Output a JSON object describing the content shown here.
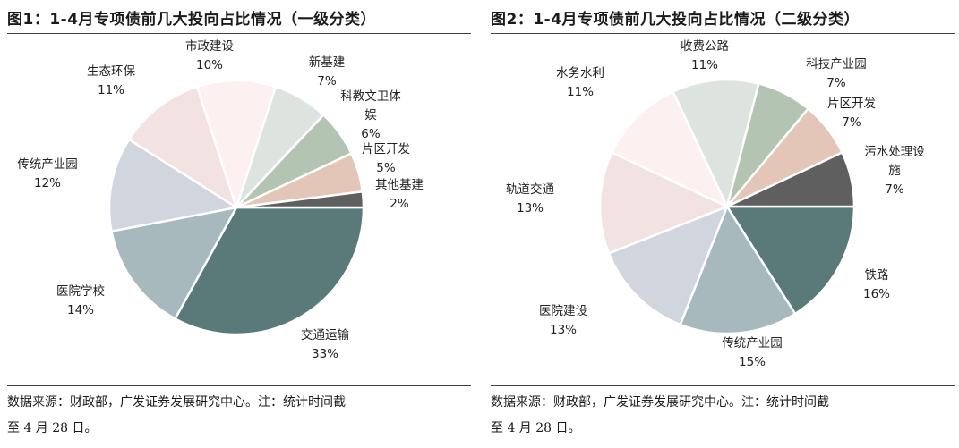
{
  "chart_data": [
    {
      "type": "pie",
      "title": "图1：1-4月专项债前几大投向占比情况（一级分类）",
      "unit": "%",
      "slices": [
        {
          "name": "交通运输",
          "value": 33,
          "label": "33%",
          "color": "#5a7a79"
        },
        {
          "name": "医院学校",
          "value": 14,
          "label": "14%",
          "color": "#a8b9bd"
        },
        {
          "name": "传统产业园",
          "value": 12,
          "label": "12%",
          "color": "#d0d5de"
        },
        {
          "name": "生态环保",
          "value": 11,
          "label": "11%",
          "color": "#f2e2e2"
        },
        {
          "name": "市政建设",
          "value": 10,
          "label": "10%",
          "color": "#fcf0f0"
        },
        {
          "name": "新基建",
          "value": 7,
          "label": "7%",
          "color": "#dde4e0"
        },
        {
          "name": "科教文卫体娱",
          "name_lines": [
            "科教文卫体",
            "娱"
          ],
          "value": 6,
          "label": "6%",
          "color": "#b4c4b2"
        },
        {
          "name": "片区开发",
          "value": 5,
          "label": "5%",
          "color": "#e3c6b7"
        },
        {
          "name": "其他基建",
          "value": 2,
          "label": "2%",
          "color": "#5f5f5f"
        }
      ]
    },
    {
      "type": "pie",
      "title": "图2：1-4月专项债前几大投向占比情况（二级分类）",
      "unit": "%",
      "slices": [
        {
          "name": "铁路",
          "value": 16,
          "label": "16%",
          "color": "#5a7a79"
        },
        {
          "name": "传统产业园",
          "value": 15,
          "label": "15%",
          "color": "#a8b9bd"
        },
        {
          "name": "医院建设",
          "value": 13,
          "label": "13%",
          "color": "#d0d5de"
        },
        {
          "name": "轨道交通",
          "value": 13,
          "label": "13%",
          "color": "#f2e2e2"
        },
        {
          "name": "水务水利",
          "value": 11,
          "label": "11%",
          "color": "#fcf0f0"
        },
        {
          "name": "收费公路",
          "value": 11,
          "label": "11%",
          "color": "#dde4e0"
        },
        {
          "name": "科技产业园",
          "value": 7,
          "label": "7%",
          "color": "#b4c4b2"
        },
        {
          "name": "片区开发",
          "value": 7,
          "label": "7%",
          "color": "#e3c6b7"
        },
        {
          "name": "污水处理设施",
          "name_lines": [
            "污水处理设",
            "施"
          ],
          "value": 7,
          "label": "7%",
          "color": "#5f5f5f"
        }
      ]
    }
  ],
  "footer": {
    "left": [
      "数据来源：财政部，广发证券发展研究中心。注：统计时间截",
      "至 4 月 28 日。"
    ],
    "right": [
      "数据来源：财政部，广发证券发展研究中心。注：统计时间截",
      "至 4 月 28 日。"
    ]
  }
}
